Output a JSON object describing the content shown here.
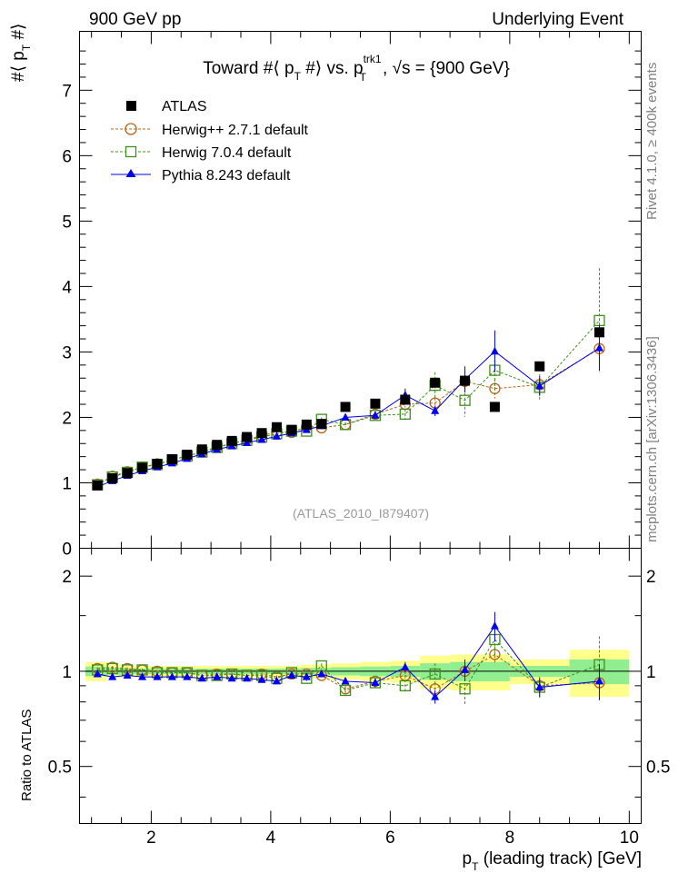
{
  "header": {
    "left": "900 GeV pp",
    "right": "Underlying Event"
  },
  "side_labels": {
    "rivet": "Rivet 4.1.0, ≥ 400k events",
    "mcplots": "mcplots.cern.ch [arXiv:1306.3436]"
  },
  "watermark": "(ATLAS_2010_I879407)",
  "title_parts": {
    "a": "Toward #",
    "b": "⟨ p",
    "b_sub": "T",
    "c": " #⟩ vs. p",
    "c_sup": "trk1",
    "c_sub": "T",
    "d": ", ",
    "sqrt": "√s",
    "e": " = {900 GeV}"
  },
  "ylabel_parts": {
    "a": "#⟨ p",
    "sub": "T",
    "b": " #⟩"
  },
  "xlabel_parts": {
    "a": "p",
    "sub": "T",
    "b": " (leading track) [GeV]"
  },
  "ratio_ylabel": "Ratio to ATLAS",
  "colors": {
    "atlas": "#000000",
    "herwigpp": "#b8641c",
    "herwig7": "#3f8f1f",
    "pythia": "#0000ee",
    "band_inner": "#90ee90",
    "band_outer": "#ffff8c"
  },
  "chart_data": [
    {
      "type": "scatter",
      "panel": "main",
      "title": "Toward #⟨ p_T #⟩ vs. p_T^trk1, √s = {900 GeV}",
      "xlabel": "p_T (leading track) [GeV]",
      "ylabel": "#⟨ p_T #⟩",
      "xlim": [
        0.8,
        10.2
      ],
      "ylim": [
        0,
        7.9
      ],
      "x_ticks": [
        2,
        4,
        6,
        8,
        10
      ],
      "y_ticks": [
        0,
        1,
        2,
        3,
        4,
        5,
        6,
        7
      ],
      "x": [
        1.1,
        1.35,
        1.6,
        1.85,
        2.1,
        2.35,
        2.6,
        2.85,
        3.1,
        3.35,
        3.6,
        3.85,
        4.1,
        4.35,
        4.6,
        4.85,
        5.25,
        5.75,
        6.25,
        6.75,
        7.25,
        7.75,
        8.5,
        9.5
      ],
      "series": [
        {
          "name": "ATLAS",
          "marker": "filled-square",
          "values": [
            0.96,
            1.07,
            1.15,
            1.23,
            1.29,
            1.36,
            1.43,
            1.51,
            1.58,
            1.64,
            1.7,
            1.76,
            1.85,
            1.81,
            1.89,
            1.9,
            2.16,
            2.21,
            2.27,
            2.53,
            2.56,
            2.16,
            2.78,
            3.3
          ]
        },
        {
          "name": "Herwig++ 2.7.1 default",
          "marker": "open-circle",
          "line": "dashed",
          "values": [
            0.98,
            1.1,
            1.17,
            1.24,
            1.29,
            1.35,
            1.41,
            1.47,
            1.55,
            1.6,
            1.66,
            1.72,
            1.78,
            1.77,
            1.86,
            1.84,
            1.89,
            2.05,
            2.2,
            2.22,
            2.55,
            2.44,
            2.5,
            3.05
          ],
          "errors": [
            0.01,
            0.01,
            0.01,
            0.01,
            0.01,
            0.01,
            0.01,
            0.01,
            0.01,
            0.01,
            0.01,
            0.02,
            0.02,
            0.02,
            0.02,
            0.02,
            0.03,
            0.04,
            0.05,
            0.08,
            0.12,
            0.15,
            0.1,
            0.25
          ]
        },
        {
          "name": "Herwig 7.0.4 default",
          "marker": "open-square",
          "line": "dashed",
          "values": [
            0.97,
            1.09,
            1.16,
            1.24,
            1.28,
            1.35,
            1.41,
            1.47,
            1.54,
            1.6,
            1.65,
            1.7,
            1.75,
            1.79,
            1.79,
            1.97,
            1.89,
            2.03,
            2.05,
            2.49,
            2.26,
            2.72,
            2.46,
            3.48
          ],
          "errors": [
            0.01,
            0.01,
            0.01,
            0.01,
            0.01,
            0.01,
            0.01,
            0.01,
            0.01,
            0.01,
            0.02,
            0.02,
            0.02,
            0.02,
            0.03,
            0.03,
            0.04,
            0.06,
            0.08,
            0.2,
            0.25,
            0.3,
            0.2,
            0.8
          ]
        },
        {
          "name": "Pythia 8.243 default",
          "marker": "filled-triangle",
          "line": "solid",
          "values": [
            0.94,
            1.03,
            1.11,
            1.18,
            1.24,
            1.3,
            1.37,
            1.44,
            1.51,
            1.56,
            1.61,
            1.66,
            1.71,
            1.76,
            1.81,
            1.87,
            2.0,
            2.03,
            2.34,
            2.1,
            2.58,
            3.01,
            2.48,
            3.06
          ],
          "errors": [
            0.01,
            0.01,
            0.01,
            0.01,
            0.01,
            0.01,
            0.01,
            0.01,
            0.01,
            0.01,
            0.01,
            0.02,
            0.02,
            0.02,
            0.02,
            0.03,
            0.04,
            0.05,
            0.1,
            0.08,
            0.2,
            0.32,
            0.15,
            0.35
          ]
        }
      ]
    },
    {
      "type": "scatter",
      "panel": "ratio",
      "ylabel": "Ratio to ATLAS",
      "xlabel": "p_T (leading track) [GeV]",
      "xlim": [
        0.8,
        10.2
      ],
      "ylim": [
        0.33,
        2.45
      ],
      "x_ticks": [
        2,
        4,
        6,
        8,
        10
      ],
      "y_ticks": [
        0.5,
        1,
        2
      ],
      "x": [
        1.1,
        1.35,
        1.6,
        1.85,
        2.1,
        2.35,
        2.6,
        2.85,
        3.1,
        3.35,
        3.6,
        3.85,
        4.1,
        4.35,
        4.6,
        4.85,
        5.25,
        5.75,
        6.25,
        6.75,
        7.25,
        7.75,
        8.5,
        9.5
      ],
      "bins": [
        [
          0.9,
          1.25
        ],
        [
          1.25,
          1.5
        ],
        [
          1.5,
          1.75
        ],
        [
          1.75,
          2.0
        ],
        [
          2.0,
          2.25
        ],
        [
          2.25,
          2.5
        ],
        [
          2.5,
          2.75
        ],
        [
          2.75,
          3.0
        ],
        [
          3.0,
          3.25
        ],
        [
          3.25,
          3.5
        ],
        [
          3.5,
          3.75
        ],
        [
          3.75,
          4.0
        ],
        [
          4.0,
          4.25
        ],
        [
          4.25,
          4.5
        ],
        [
          4.5,
          4.75
        ],
        [
          4.75,
          5.0
        ],
        [
          5.0,
          5.5
        ],
        [
          5.5,
          6.0
        ],
        [
          6.0,
          6.5
        ],
        [
          6.5,
          7.0
        ],
        [
          7.0,
          7.5
        ],
        [
          7.5,
          8.0
        ],
        [
          8.0,
          9.0
        ],
        [
          9.0,
          10.0
        ]
      ],
      "band_inner": [
        0.035,
        0.025,
        0.02,
        0.02,
        0.02,
        0.02,
        0.02,
        0.02,
        0.02,
        0.02,
        0.02,
        0.02,
        0.02,
        0.02,
        0.025,
        0.025,
        0.03,
        0.035,
        0.04,
        0.06,
        0.07,
        0.07,
        0.04,
        0.09
      ],
      "band_outer": [
        0.07,
        0.05,
        0.04,
        0.04,
        0.04,
        0.04,
        0.04,
        0.04,
        0.04,
        0.04,
        0.04,
        0.04,
        0.04,
        0.04,
        0.05,
        0.05,
        0.06,
        0.07,
        0.08,
        0.12,
        0.13,
        0.13,
        0.09,
        0.17
      ],
      "series": [
        {
          "name": "Herwig++ 2.7.1 default",
          "values": [
            1.02,
            1.03,
            1.02,
            1.01,
            1.0,
            0.99,
            0.99,
            0.97,
            0.98,
            0.98,
            0.97,
            0.98,
            0.96,
            0.98,
            0.98,
            0.97,
            0.88,
            0.93,
            0.97,
            0.88,
            1.0,
            1.13,
            0.9,
            0.92
          ],
          "errors": [
            0.01,
            0.01,
            0.01,
            0.01,
            0.01,
            0.01,
            0.01,
            0.01,
            0.01,
            0.01,
            0.01,
            0.01,
            0.01,
            0.01,
            0.01,
            0.01,
            0.02,
            0.02,
            0.03,
            0.04,
            0.05,
            0.07,
            0.04,
            0.08
          ]
        },
        {
          "name": "Herwig 7.0.4 default",
          "values": [
            1.01,
            1.02,
            1.01,
            1.01,
            0.99,
            0.99,
            0.99,
            0.97,
            0.97,
            0.98,
            0.97,
            0.97,
            0.95,
            0.99,
            0.95,
            1.04,
            0.87,
            0.92,
            0.9,
            0.98,
            0.88,
            1.26,
            0.89,
            1.05
          ],
          "errors": [
            0.01,
            0.01,
            0.01,
            0.01,
            0.01,
            0.01,
            0.01,
            0.01,
            0.01,
            0.01,
            0.01,
            0.01,
            0.01,
            0.01,
            0.02,
            0.02,
            0.02,
            0.03,
            0.04,
            0.08,
            0.1,
            0.14,
            0.07,
            0.24
          ]
        },
        {
          "name": "Pythia 8.243 default",
          "values": [
            0.98,
            0.96,
            0.97,
            0.96,
            0.96,
            0.96,
            0.96,
            0.95,
            0.96,
            0.95,
            0.95,
            0.94,
            0.93,
            0.97,
            0.96,
            0.98,
            0.93,
            0.92,
            1.03,
            0.83,
            1.01,
            1.39,
            0.89,
            0.93
          ],
          "errors": [
            0.01,
            0.01,
            0.01,
            0.01,
            0.01,
            0.01,
            0.01,
            0.01,
            0.01,
            0.01,
            0.01,
            0.01,
            0.01,
            0.01,
            0.01,
            0.02,
            0.02,
            0.03,
            0.04,
            0.04,
            0.08,
            0.15,
            0.06,
            0.12
          ]
        }
      ]
    }
  ]
}
